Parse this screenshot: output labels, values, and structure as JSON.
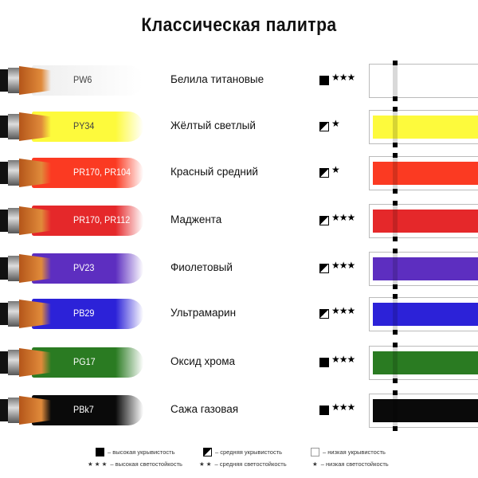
{
  "title": "Классическая палитра",
  "colors": [
    {
      "code": "PW6",
      "name": "Белила титановые",
      "hex": "#ffffff",
      "coverage": "high",
      "stars": "★★★",
      "code_color": "#444"
    },
    {
      "code": "PY34",
      "name": "Жёлтый светлый",
      "hex": "#fdfa3c",
      "coverage": "medium",
      "stars": "★",
      "code_color": "#444"
    },
    {
      "code": "PR170, PR104",
      "name": "Красный средний",
      "hex": "#fb3a22",
      "coverage": "medium",
      "stars": "★",
      "code_color": "#fff"
    },
    {
      "code": "PR170, PR112",
      "name": "Маджента",
      "hex": "#e5282a",
      "coverage": "medium",
      "stars": "★★★",
      "code_color": "#fff"
    },
    {
      "code": "PV23",
      "name": "Фиолетовый",
      "hex": "#5d2ec0",
      "coverage": "medium",
      "stars": "★★★",
      "code_color": "#fff"
    },
    {
      "code": "PB29",
      "name": "Ультрамарин",
      "hex": "#2c22d8",
      "coverage": "medium",
      "stars": "★★★",
      "code_color": "#fff"
    },
    {
      "code": "PG17",
      "name": "Оксид хрома",
      "hex": "#2a7b22",
      "coverage": "high",
      "stars": "★★★",
      "code_color": "#fff"
    },
    {
      "code": "PBk7",
      "name": "Сажа газовая",
      "hex": "#0a0a0a",
      "coverage": "high",
      "stars": "★★★",
      "code_color": "#fff"
    }
  ],
  "legend": {
    "high_cov": "– высокая укрывистость",
    "med_cov": "– средняя укрывистость",
    "low_cov": "– низкая укрывистость",
    "high_lf_stars": "★ ★ ★",
    "high_lf": "– высокая светостойкость",
    "med_lf_stars": "★ ★",
    "med_lf": "– средняя светостойкость",
    "low_lf_stars": "★",
    "low_lf": "– низкая светостойкость"
  }
}
